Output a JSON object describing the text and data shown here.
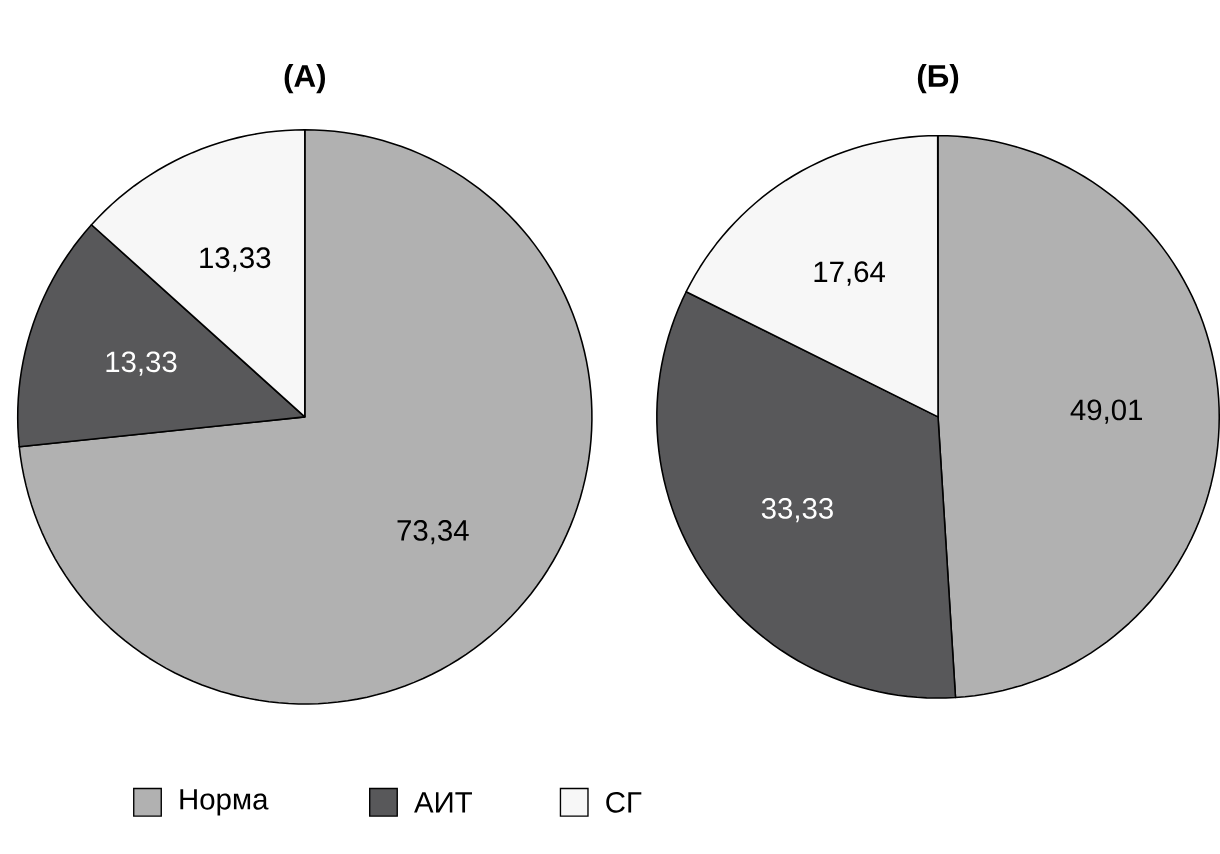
{
  "chart_data": [
    {
      "type": "pie",
      "title": "(А)",
      "categories": [
        "Норма",
        "АИТ",
        "СГ"
      ],
      "values": [
        73.34,
        13.33,
        13.33
      ],
      "value_labels": [
        "73,34",
        "13,33",
        "13,33"
      ],
      "colors": [
        "#b1b1b1",
        "#58585a",
        "#f7f7f7"
      ],
      "legend": "bottom"
    },
    {
      "type": "pie",
      "title": "(Б)",
      "categories": [
        null,
        null,
        null
      ],
      "values": [
        49.01,
        33.33,
        17.64
      ],
      "value_labels": [
        "49,01",
        "33,33",
        "17,64"
      ],
      "colors": [
        "#b1b1b1",
        "#58585a",
        "#f7f7f7"
      ]
    }
  ]
}
